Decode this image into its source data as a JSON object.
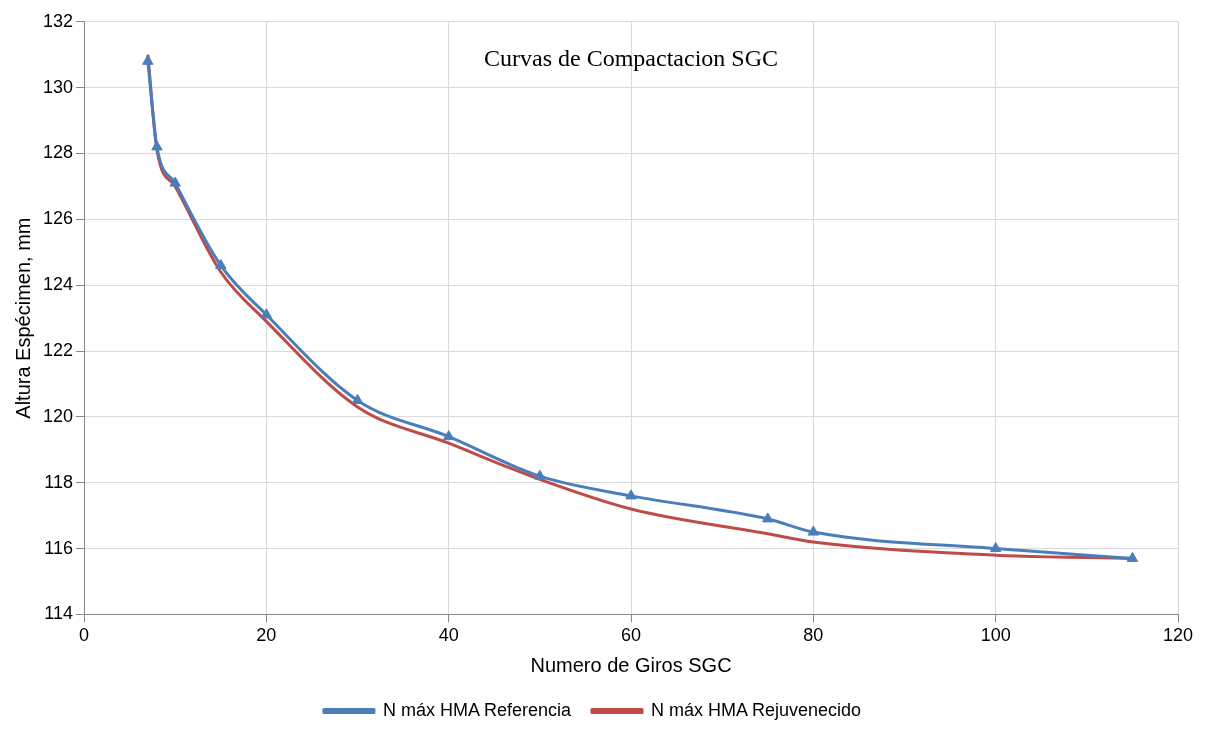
{
  "chart_data": {
    "type": "line",
    "title": "Curvas de Compactacion SGC",
    "xlabel": "Numero de Giros SGC",
    "ylabel": "Altura Espécimen, mm",
    "xlim": [
      0,
      120
    ],
    "xticks": [
      0,
      20,
      40,
      60,
      80,
      100,
      120
    ],
    "ylim": [
      114,
      132
    ],
    "yticks": [
      114,
      116,
      118,
      120,
      122,
      124,
      126,
      128,
      130,
      132
    ],
    "grid": true,
    "legend": "bottom",
    "series": [
      {
        "name": "N máx HMA Referencia",
        "color": "#4a7ebb",
        "marker": "triangle",
        "x": [
          7,
          8,
          10,
          15,
          20,
          30,
          40,
          50,
          60,
          75,
          80,
          100,
          115
        ],
        "values": [
          130.8,
          128.2,
          127.1,
          124.6,
          123.1,
          120.5,
          119.4,
          118.2,
          117.6,
          116.9,
          116.5,
          116.0,
          115.7
        ]
      },
      {
        "name": "N máx HMA Rejuvenecido",
        "color": "#be4b48",
        "marker": "none",
        "x": [
          7,
          8,
          10,
          15,
          20,
          30,
          40,
          50,
          60,
          75,
          80,
          100,
          115
        ],
        "values": [
          131.0,
          128.1,
          127.0,
          124.4,
          122.9,
          120.3,
          119.2,
          118.1,
          117.2,
          116.45,
          116.2,
          115.8,
          115.7
        ]
      }
    ]
  }
}
